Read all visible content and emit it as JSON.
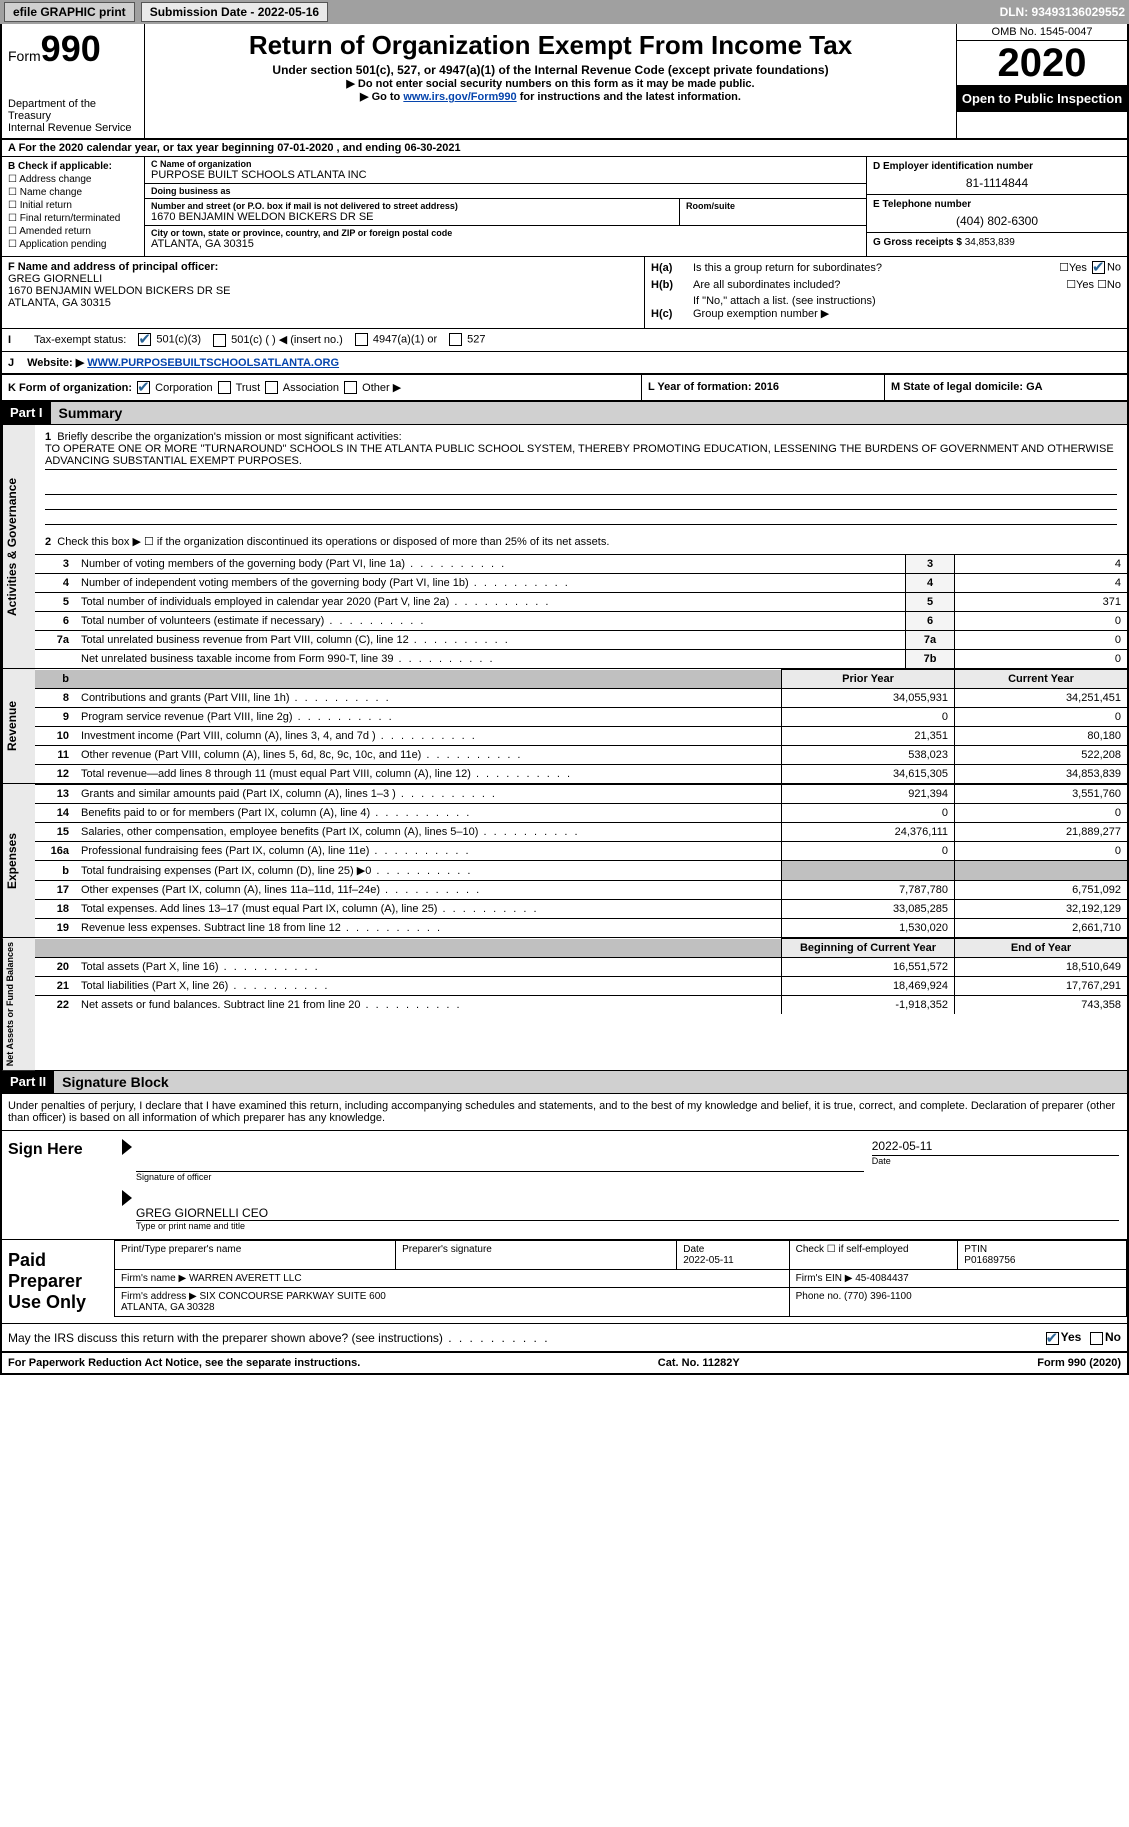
{
  "top_bar": {
    "efile": "efile GRAPHIC print",
    "sub_label": "Submission Date - 2022-05-16",
    "dln": "DLN: 93493136029552"
  },
  "header": {
    "form_prefix": "Form",
    "form_num": "990",
    "dept": "Department of the Treasury\nInternal Revenue Service",
    "title": "Return of Organization Exempt From Income Tax",
    "sub": "Under section 501(c), 527, or 4947(a)(1) of the Internal Revenue Code (except private foundations)",
    "note1": "▶ Do not enter social security numbers on this form as it may be made public.",
    "note2_pre": "▶ Go to ",
    "note2_link": "www.irs.gov/Form990",
    "note2_post": " for instructions and the latest information.",
    "omb": "OMB No. 1545-0047",
    "year": "2020",
    "open": "Open to Public Inspection"
  },
  "rowA": "A For the 2020 calendar year, or tax year beginning 07-01-2020   , and ending 06-30-2021",
  "sectionB": {
    "label": "B Check if applicable:",
    "opts": [
      "Address change",
      "Name change",
      "Initial return",
      "Final return/terminated",
      "Amended return",
      "Application pending"
    ]
  },
  "sectionC": {
    "name_lbl": "C Name of organization",
    "name": "PURPOSE BUILT SCHOOLS ATLANTA INC",
    "dba_lbl": "Doing business as",
    "dba": "",
    "street_lbl": "Number and street (or P.O. box if mail is not delivered to street address)",
    "room_lbl": "Room/suite",
    "street": "1670 BENJAMIN WELDON BICKERS DR SE",
    "city_lbl": "City or town, state or province, country, and ZIP or foreign postal code",
    "city": "ATLANTA, GA  30315"
  },
  "sectionD": {
    "lbl": "D Employer identification number",
    "val": "81-1114844"
  },
  "sectionE": {
    "lbl": "E Telephone number",
    "val": "(404) 802-6300"
  },
  "sectionG": {
    "lbl": "G Gross receipts $",
    "val": "34,853,839"
  },
  "sectionF": {
    "lbl": "F Name and address of principal officer:",
    "name": "GREG GIORNELLI",
    "addr1": "1670 BENJAMIN WELDON BICKERS DR SE",
    "addr2": "ATLANTA, GA  30315"
  },
  "sectionH": {
    "a": "Is this a group return for subordinates?",
    "b": "Are all subordinates included?",
    "b_note": "If \"No,\" attach a list. (see instructions)",
    "c": "Group exemption number ▶"
  },
  "rowI": {
    "lbl": "Tax-exempt status:",
    "o1": "501(c)(3)",
    "o2": "501(c) (  ) ◀ (insert no.)",
    "o3": "4947(a)(1) or",
    "o4": "527"
  },
  "rowJ": {
    "lbl": "Website: ▶",
    "val": "WWW.PURPOSEBUILTSCHOOLSATLANTA.ORG"
  },
  "rowK": {
    "lbl": "K Form of organization:",
    "corp": "Corporation",
    "trust": "Trust",
    "assoc": "Association",
    "other": "Other ▶",
    "L": "L Year of formation: 2016",
    "M": "M State of legal domicile: GA"
  },
  "partI": {
    "tag": "Part I",
    "title": "Summary",
    "line1_lbl": "Briefly describe the organization's mission or most significant activities:",
    "line1_val": "TO OPERATE ONE OR MORE \"TURNAROUND\" SCHOOLS IN THE ATLANTA PUBLIC SCHOOL SYSTEM, THEREBY PROMOTING EDUCATION, LESSENING THE BURDENS OF GOVERNMENT AND OTHERWISE ADVANCING SUBSTANTIAL EXEMPT PURPOSES.",
    "line2": "Check this box ▶ ☐ if the organization discontinued its operations or disposed of more than 25% of its net assets.",
    "gov_rows": [
      {
        "n": "3",
        "label": "Number of voting members of the governing body (Part VI, line 1a)",
        "box": "3",
        "val": "4"
      },
      {
        "n": "4",
        "label": "Number of independent voting members of the governing body (Part VI, line 1b)",
        "box": "4",
        "val": "4"
      },
      {
        "n": "5",
        "label": "Total number of individuals employed in calendar year 2020 (Part V, line 2a)",
        "box": "5",
        "val": "371"
      },
      {
        "n": "6",
        "label": "Total number of volunteers (estimate if necessary)",
        "box": "6",
        "val": "0"
      },
      {
        "n": "7a",
        "label": "Total unrelated business revenue from Part VIII, column (C), line 12",
        "box": "7a",
        "val": "0"
      },
      {
        "n": "",
        "label": "Net unrelated business taxable income from Form 990-T, line 39",
        "box": "7b",
        "val": "0"
      }
    ],
    "col_hdr_prior": "Prior Year",
    "col_hdr_curr": "Current Year",
    "rev_rows": [
      {
        "n": "8",
        "label": "Contributions and grants (Part VIII, line 1h)",
        "prior": "34,055,931",
        "curr": "34,251,451"
      },
      {
        "n": "9",
        "label": "Program service revenue (Part VIII, line 2g)",
        "prior": "0",
        "curr": "0"
      },
      {
        "n": "10",
        "label": "Investment income (Part VIII, column (A), lines 3, 4, and 7d )",
        "prior": "21,351",
        "curr": "80,180"
      },
      {
        "n": "11",
        "label": "Other revenue (Part VIII, column (A), lines 5, 6d, 8c, 9c, 10c, and 11e)",
        "prior": "538,023",
        "curr": "522,208"
      },
      {
        "n": "12",
        "label": "Total revenue—add lines 8 through 11 (must equal Part VIII, column (A), line 12)",
        "prior": "34,615,305",
        "curr": "34,853,839"
      }
    ],
    "exp_rows": [
      {
        "n": "13",
        "label": "Grants and similar amounts paid (Part IX, column (A), lines 1–3 )",
        "prior": "921,394",
        "curr": "3,551,760"
      },
      {
        "n": "14",
        "label": "Benefits paid to or for members (Part IX, column (A), line 4)",
        "prior": "0",
        "curr": "0"
      },
      {
        "n": "15",
        "label": "Salaries, other compensation, employee benefits (Part IX, column (A), lines 5–10)",
        "prior": "24,376,111",
        "curr": "21,889,277"
      },
      {
        "n": "16a",
        "label": "Professional fundraising fees (Part IX, column (A), line 11e)",
        "prior": "0",
        "curr": "0"
      },
      {
        "n": "b",
        "label": "Total fundraising expenses (Part IX, column (D), line 25) ▶0",
        "prior": "",
        "curr": "",
        "shade": true
      },
      {
        "n": "17",
        "label": "Other expenses (Part IX, column (A), lines 11a–11d, 11f–24e)",
        "prior": "7,787,780",
        "curr": "6,751,092"
      },
      {
        "n": "18",
        "label": "Total expenses. Add lines 13–17 (must equal Part IX, column (A), line 25)",
        "prior": "33,085,285",
        "curr": "32,192,129"
      },
      {
        "n": "19",
        "label": "Revenue less expenses. Subtract line 18 from line 12",
        "prior": "1,530,020",
        "curr": "2,661,710"
      }
    ],
    "col_hdr_beg": "Beginning of Current Year",
    "col_hdr_end": "End of Year",
    "net_rows": [
      {
        "n": "20",
        "label": "Total assets (Part X, line 16)",
        "prior": "16,551,572",
        "curr": "18,510,649"
      },
      {
        "n": "21",
        "label": "Total liabilities (Part X, line 26)",
        "prior": "18,469,924",
        "curr": "17,767,291"
      },
      {
        "n": "22",
        "label": "Net assets or fund balances. Subtract line 21 from line 20",
        "prior": "-1,918,352",
        "curr": "743,358"
      }
    ]
  },
  "side_labels": {
    "gov": "Activities & Governance",
    "rev": "Revenue",
    "exp": "Expenses",
    "net": "Net Assets or Fund Balances"
  },
  "partII": {
    "tag": "Part II",
    "title": "Signature Block",
    "decl": "Under penalties of perjury, I declare that I have examined this return, including accompanying schedules and statements, and to the best of my knowledge and belief, it is true, correct, and complete. Declaration of preparer (other than officer) is based on all information of which preparer has any knowledge.",
    "sign_here": "Sign Here",
    "sig_date": "2022-05-11",
    "sig_lbl1": "Signature of officer",
    "sig_lbl2": "Date",
    "officer": "GREG GIORNELLI CEO",
    "officer_lbl": "Type or print name and title",
    "paid": "Paid Preparer Use Only",
    "p_name_lbl": "Print/Type preparer's name",
    "p_sig_lbl": "Preparer's signature",
    "p_date_lbl": "Date",
    "p_date": "2022-05-11",
    "p_self_lbl": "Check ☐ if self-employed",
    "p_ptin_lbl": "PTIN",
    "p_ptin": "P01689756",
    "firm_lbl": "Firm's name   ▶",
    "firm": "WARREN AVERETT LLC",
    "firm_ein_lbl": "Firm's EIN ▶",
    "firm_ein": "45-4084437",
    "firm_addr_lbl": "Firm's address ▶",
    "firm_addr": "SIX CONCOURSE PARKWAY SUITE 600\nATLANTA, GA  30328",
    "firm_phone_lbl": "Phone no.",
    "firm_phone": "(770) 396-1100",
    "discuss": "May the IRS discuss this return with the preparer shown above? (see instructions)"
  },
  "footer": {
    "left": "For Paperwork Reduction Act Notice, see the separate instructions.",
    "mid": "Cat. No. 11282Y",
    "right": "Form 990 (2020)"
  }
}
